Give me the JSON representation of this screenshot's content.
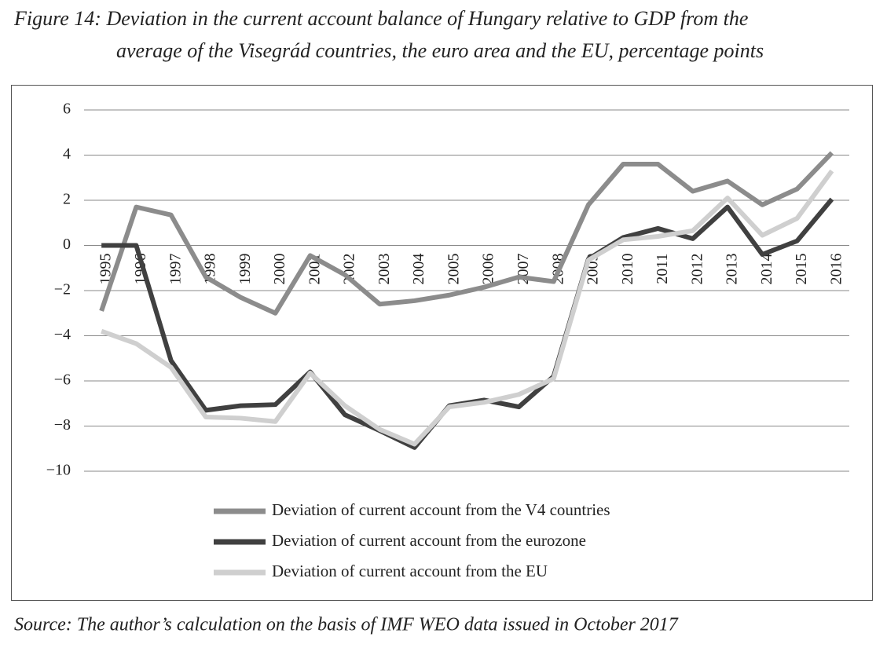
{
  "chart_data": {
    "type": "line",
    "title": [
      "Figure 14: Deviation in the current account balance of Hungary relative to GDP from the",
      "average of the Visegrád countries, the euro area and the EU, percentage points"
    ],
    "source": "Source: The author’s calculation on the basis of IMF WEO data issued in October 2017",
    "categories": [
      "1995",
      "1996",
      "1997",
      "1998",
      "1999",
      "2000",
      "2001",
      "2002",
      "2003",
      "2004",
      "2005",
      "2006",
      "2007",
      "2008",
      "2009",
      "2010",
      "2011",
      "2012",
      "2013",
      "2014",
      "2015",
      "2016"
    ],
    "series": [
      {
        "name": "Deviation of current account from the V4 countries",
        "color": "#8c8c8c",
        "values": [
          -2.9,
          1.7,
          1.35,
          -1.4,
          -2.3,
          -3.0,
          -0.45,
          -1.3,
          -2.6,
          -2.45,
          -2.2,
          -1.85,
          -1.4,
          -1.6,
          1.8,
          3.6,
          3.6,
          2.4,
          2.85,
          1.8,
          2.5,
          4.1
        ]
      },
      {
        "name": "Deviation of current account from the eurozone",
        "color": "#404040",
        "values": [
          0,
          0,
          -5.1,
          -7.3,
          -7.1,
          -7.05,
          -5.6,
          -7.5,
          -8.2,
          -8.95,
          -7.1,
          -6.85,
          -7.15,
          -5.8,
          -0.6,
          0.35,
          0.75,
          0.3,
          1.7,
          -0.4,
          0.2,
          2.05
        ]
      },
      {
        "name": "Deviation of current account from the EU",
        "color": "#cfcfcf",
        "values": [
          -3.8,
          -4.35,
          -5.4,
          -7.6,
          -7.65,
          -7.8,
          -5.65,
          -7.1,
          -8.15,
          -8.8,
          -7.15,
          -6.95,
          -6.6,
          -5.9,
          -0.65,
          0.25,
          0.4,
          0.65,
          2.1,
          0.45,
          1.2,
          3.3
        ]
      }
    ],
    "ylim": [
      -10,
      6
    ],
    "yticks": [
      {
        "value": -10,
        "label": "−10"
      },
      {
        "value": -8,
        "label": "−8"
      },
      {
        "value": -6,
        "label": "−6"
      },
      {
        "value": -4,
        "label": "−4"
      },
      {
        "value": -2,
        "label": "−2"
      },
      0,
      2,
      4,
      6
    ],
    "grid": true
  }
}
